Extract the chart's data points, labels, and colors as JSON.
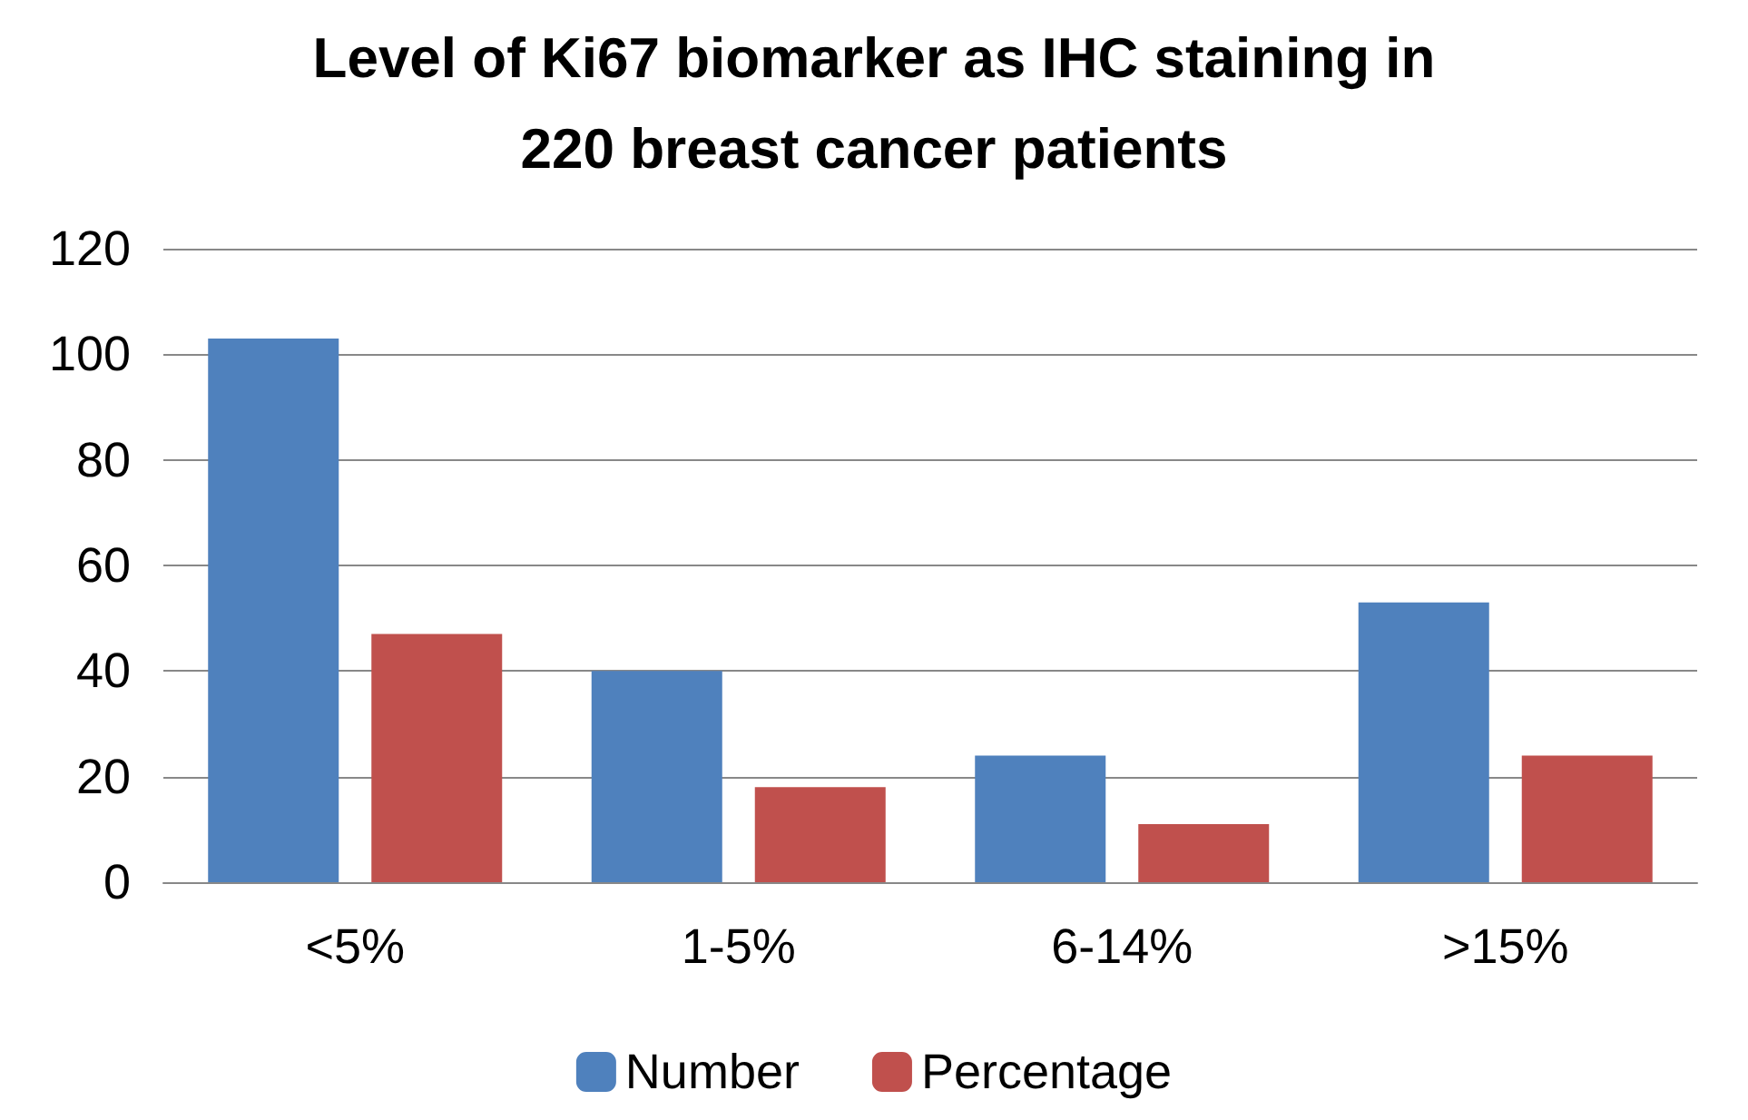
{
  "chart_data": {
    "type": "bar",
    "title": "Level of Ki67 biomarker as IHC staining in\n220 breast cancer patients",
    "categories": [
      "<5%",
      "1-5%",
      "6-14%",
      ">15%"
    ],
    "series": [
      {
        "name": "Number",
        "color": "#4f81bd",
        "values": [
          103,
          40,
          24,
          53
        ]
      },
      {
        "name": "Percentage",
        "color": "#c0504d",
        "values": [
          47,
          18,
          11,
          24
        ]
      }
    ],
    "ylim": [
      0,
      120
    ],
    "yticks": [
      0,
      20,
      40,
      60,
      80,
      100,
      120
    ],
    "grid": "y",
    "legend": "bottom"
  }
}
